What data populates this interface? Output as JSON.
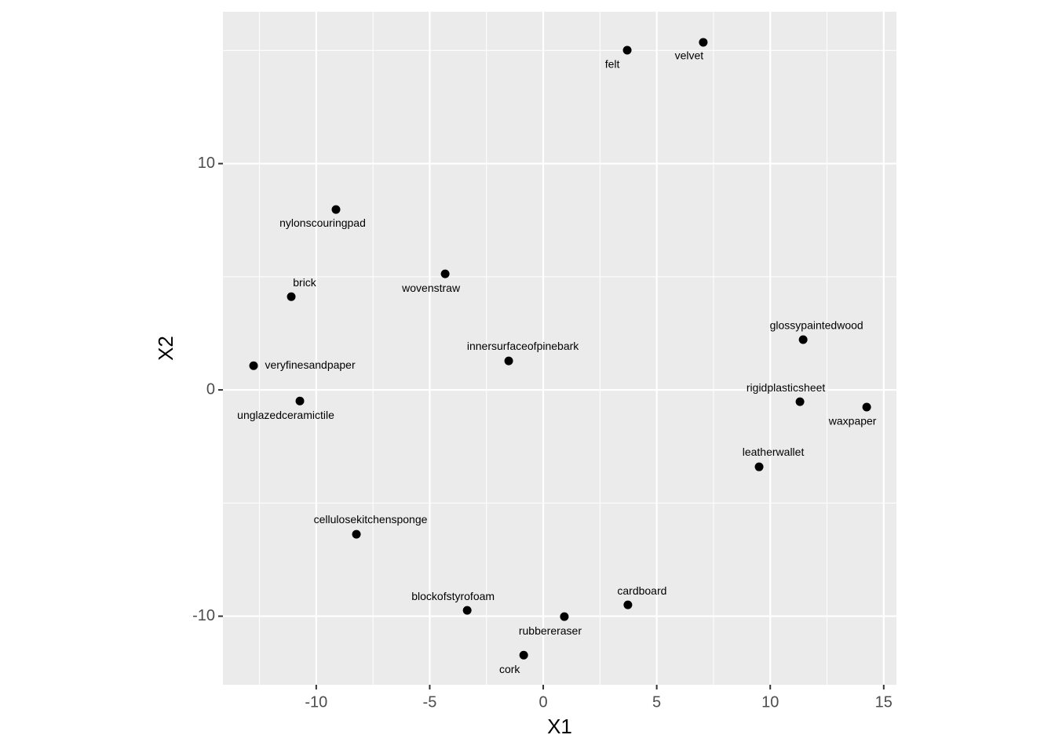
{
  "chart_data": {
    "type": "scatter",
    "x_label": "X1",
    "y_label": "X2",
    "labels": [
      "felt",
      "velvet",
      "nylonscouringpad",
      "brick",
      "wovenstraw",
      "innersurfaceofpinebark",
      "veryfinesandpaper",
      "unglazedceramictile",
      "glossypaintedwood",
      "rigidplasticsheet",
      "waxpaper",
      "leatherwallet",
      "cellulosekitchensponge",
      "blockofstyrofoam",
      "rubbereraser",
      "cardboard",
      "cork"
    ],
    "x": [
      3.7,
      7.05,
      -9.13,
      -11.1,
      -4.32,
      -1.52,
      -12.76,
      -10.72,
      11.45,
      11.31,
      14.25,
      9.51,
      -8.23,
      -3.35,
      0.93,
      3.73,
      -0.86
    ],
    "values": [
      15.01,
      15.36,
      7.97,
      4.12,
      5.13,
      1.28,
      1.07,
      -0.49,
      2.22,
      -0.52,
      -0.76,
      -3.4,
      -6.38,
      -9.74,
      -10.02,
      -9.5,
      -11.72
    ],
    "color": "#000000",
    "xlim": [
      -14.11,
      15.56
    ],
    "ylim": [
      -13.03,
      16.71
    ],
    "xticks": [
      -10,
      -5,
      0,
      5,
      10,
      15
    ],
    "yticks": [
      -10,
      0,
      10
    ],
    "x_minor_ticks": [
      -12.5,
      -7.5,
      -2.5,
      2.5,
      7.5,
      12.5
    ],
    "y_minor_ticks": [
      -5,
      5,
      15
    ],
    "grid": true
  }
}
